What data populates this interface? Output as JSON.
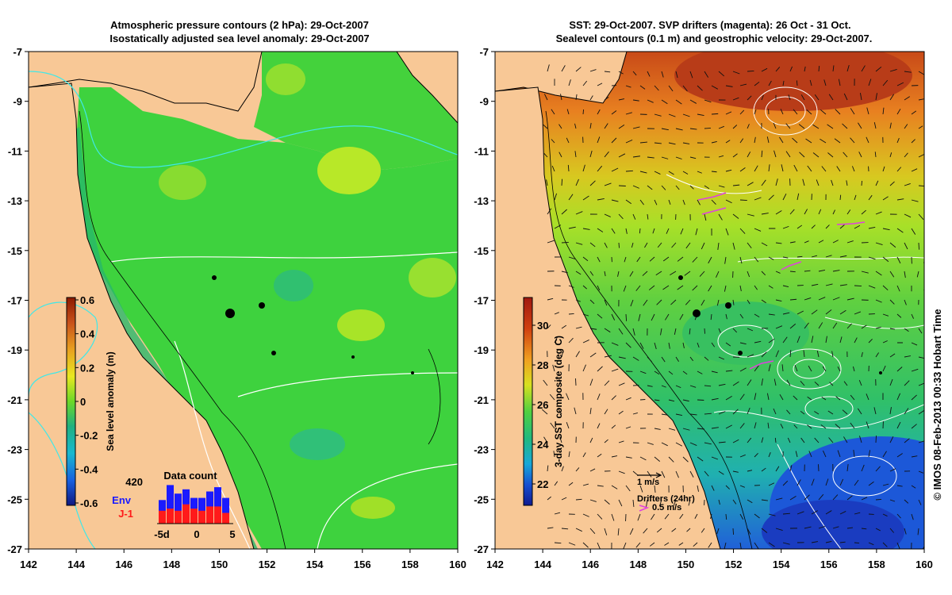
{
  "left_panel": {
    "title_line1": "Atmospheric pressure contours (2 hPa): 29-Oct-2007",
    "title_line2": "Isostatically adjusted sea level anomaly: 29-Oct-2007",
    "colorbar": {
      "label": "Sea level anomaly (m)",
      "ticks": [
        "0.6",
        "0.4",
        "0.2",
        "0",
        "-0.2",
        "-0.4",
        "-0.6"
      ],
      "colors": [
        "#8b1a00",
        "#c8501a",
        "#e8a020",
        "#f0e020",
        "#a8e020",
        "#30c830",
        "#20b080",
        "#18b8d0",
        "#1890e8",
        "#1040c8",
        "#101880"
      ]
    },
    "histogram": {
      "title": "Data count",
      "max_label": "420",
      "env_label": "Env",
      "j1_label": "J-1",
      "env_color": "#1a1aff",
      "j1_color": "#ff1a1a",
      "x_ticks": [
        "-5d",
        "0",
        "5"
      ],
      "env_heights": [
        0.55,
        0.9,
        0.7,
        0.8,
        0.6,
        0.6,
        0.75,
        0.85,
        0.6
      ],
      "j1_heights": [
        0.3,
        0.35,
        0.3,
        0.45,
        0.35,
        0.3,
        0.4,
        0.4,
        0.25
      ]
    }
  },
  "right_panel": {
    "title_line1": "SST: 29-Oct-2007. SVP drifters (magenta): 26 Oct - 31 Oct.",
    "title_line2": "Sealevel contours (0.1 m) and geostrophic velocity: 29-Oct-2007.",
    "colorbar": {
      "label": "3-day SST composite (deg C)",
      "ticks": [
        "30",
        "28",
        "26",
        "24",
        "22"
      ],
      "colors": [
        "#a01810",
        "#d04010",
        "#e88010",
        "#f0c020",
        "#c8e020",
        "#60d040",
        "#20b870",
        "#18b0b8",
        "#2080e0",
        "#1840c8",
        "#101a90"
      ]
    },
    "legend": {
      "velocity_label": "1 m/s",
      "drifters_label": "Drifters (24hr)",
      "drifters_speed": "0.5 m/s",
      "drifter_color": "#e040e0"
    }
  },
  "axes": {
    "x_ticks": [
      "142",
      "144",
      "146",
      "148",
      "150",
      "152",
      "154",
      "156",
      "158",
      "160"
    ],
    "y_ticks": [
      "-7",
      "-9",
      "-11",
      "-13",
      "-15",
      "-17",
      "-19",
      "-21",
      "-23",
      "-25",
      "-27"
    ]
  },
  "colors": {
    "land": "#f8c896",
    "sla_ocean": "#3cd23c",
    "sst_ocean": "#4ed24e"
  },
  "credit": "© IMOS 08-Feb-2013 00:33 Hobart Time"
}
